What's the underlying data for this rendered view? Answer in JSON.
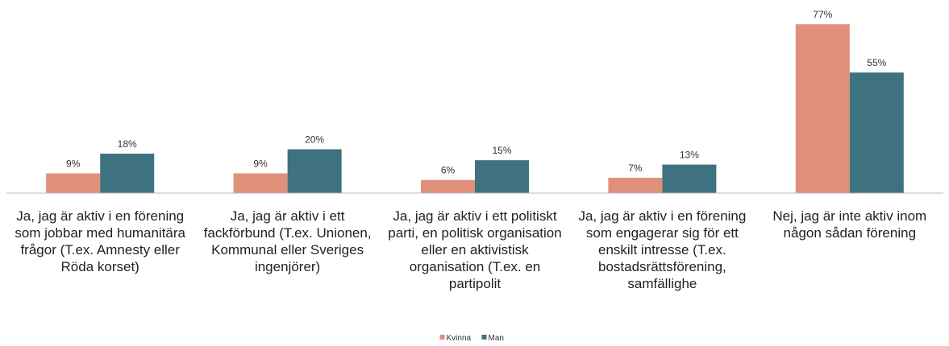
{
  "chart_data": {
    "type": "bar",
    "categories": [
      "Ja, jag är aktiv i en förening som jobbar med humanitära frågor (T.ex. Amnesty eller Röda korset)",
      "Ja, jag är aktiv i ett fackförbund (T.ex. Unionen, Kommunal eller Sveriges ingenjörer)",
      "Ja, jag är aktiv i ett politiskt parti, en politisk organisation eller en aktivistisk organisation (T.ex. en partipolit",
      "Ja, jag är aktiv i en förening som engagerar sig för ett enskilt intresse (T.ex. bostadsrättsförening, samfällighe",
      "Nej, jag är inte aktiv inom någon sådan förening"
    ],
    "series": [
      {
        "name": "Kvinna",
        "color": "#e0907a",
        "values": [
          9,
          9,
          6,
          7,
          77
        ],
        "value_labels": [
          "9%",
          "9%",
          "6%",
          "7%",
          "77%"
        ]
      },
      {
        "name": "Man",
        "color": "#3f7280",
        "values": [
          18,
          20,
          15,
          13,
          55
        ],
        "value_labels": [
          "18%",
          "20%",
          "15%",
          "13%",
          "55%"
        ]
      }
    ],
    "ylim": [
      0,
      80
    ],
    "legend": "bottom"
  }
}
